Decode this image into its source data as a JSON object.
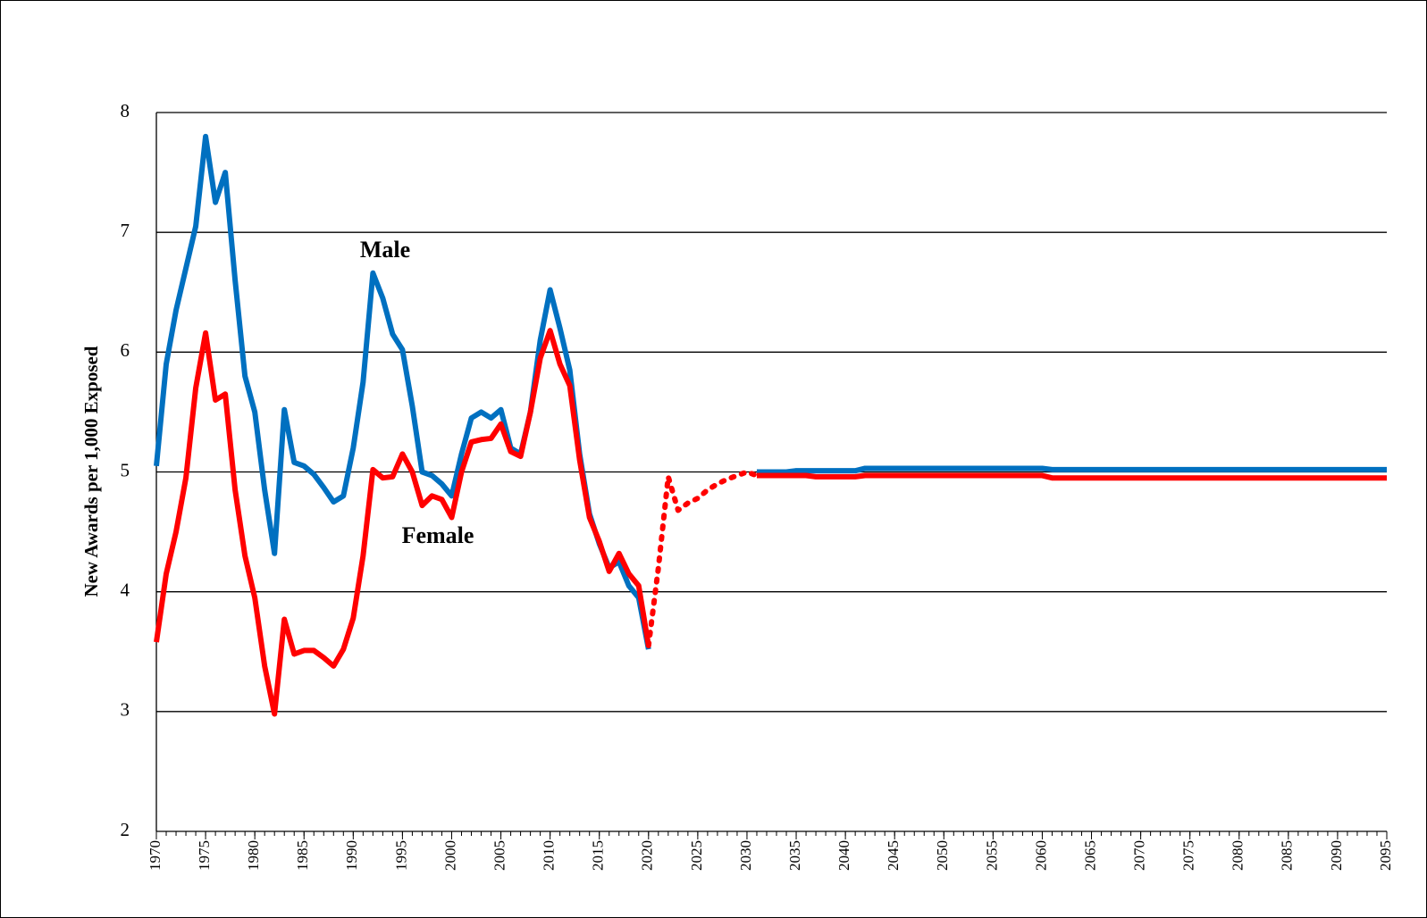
{
  "chart_data": {
    "type": "line",
    "y_label": "New Awards per 1,000 Exposed",
    "annotations": [
      {
        "text": "Male"
      },
      {
        "text": "Female"
      }
    ],
    "x": [
      1970,
      1971,
      1972,
      1973,
      1974,
      1975,
      1976,
      1977,
      1978,
      1979,
      1980,
      1981,
      1982,
      1983,
      1984,
      1985,
      1986,
      1987,
      1988,
      1989,
      1990,
      1991,
      1992,
      1993,
      1994,
      1995,
      1996,
      1997,
      1998,
      1999,
      2000,
      2001,
      2002,
      2003,
      2004,
      2005,
      2006,
      2007,
      2008,
      2009,
      2010,
      2011,
      2012,
      2013,
      2014,
      2015,
      2016,
      2017,
      2018,
      2019,
      2020,
      2021,
      2022,
      2023,
      2024,
      2025,
      2026,
      2027,
      2028,
      2029,
      2030,
      2031,
      2032,
      2033,
      2034,
      2035,
      2036,
      2037,
      2038,
      2039,
      2040,
      2041,
      2042,
      2043,
      2044,
      2045,
      2046,
      2047,
      2048,
      2049,
      2050,
      2051,
      2052,
      2053,
      2054,
      2055,
      2056,
      2057,
      2058,
      2059,
      2060,
      2061,
      2062,
      2063,
      2064,
      2065,
      2066,
      2067,
      2068,
      2069,
      2070,
      2071,
      2072,
      2073,
      2074,
      2075,
      2076,
      2077,
      2078,
      2079,
      2080,
      2081,
      2082,
      2083,
      2084,
      2085,
      2086,
      2087,
      2088,
      2089,
      2090,
      2091,
      2092,
      2093,
      2094,
      2095
    ],
    "series": [
      {
        "name": "Male",
        "color": "#0070c0",
        "values": [
          5.05,
          5.9,
          6.35,
          6.7,
          7.05,
          7.8,
          7.25,
          7.5,
          6.6,
          5.8,
          5.5,
          4.85,
          4.32,
          5.52,
          5.08,
          5.05,
          4.98,
          4.87,
          4.75,
          4.8,
          5.2,
          5.75,
          6.66,
          6.45,
          6.15,
          6.02,
          5.55,
          5.0,
          4.97,
          4.9,
          4.8,
          5.15,
          5.45,
          5.5,
          5.45,
          5.52,
          5.2,
          5.15,
          5.5,
          6.1,
          6.52,
          6.2,
          5.85,
          5.15,
          4.65,
          4.4,
          4.2,
          4.25,
          4.05,
          3.95,
          3.52,
          null,
          null,
          null,
          null,
          null,
          null,
          null,
          null,
          null,
          null,
          5.0,
          5.0,
          5.0,
          5.0,
          5.01,
          5.01,
          5.01,
          5.01,
          5.01,
          5.01,
          5.01,
          5.03,
          5.03,
          5.03,
          5.03,
          5.03,
          5.03,
          5.03,
          5.03,
          5.03,
          5.03,
          5.03,
          5.03,
          5.03,
          5.03,
          5.03,
          5.03,
          5.03,
          5.03,
          5.03,
          5.02,
          5.02,
          5.02,
          5.02,
          5.02,
          5.02,
          5.02,
          5.02,
          5.02,
          5.02,
          5.02,
          5.02,
          5.02,
          5.02,
          5.02,
          5.02,
          5.02,
          5.02,
          5.02,
          5.02,
          5.02,
          5.02,
          5.02,
          5.02,
          5.02,
          5.02,
          5.02,
          5.02,
          5.02,
          5.02,
          5.02,
          5.02,
          5.02,
          5.02,
          5.02
        ]
      },
      {
        "name": "Female",
        "color": "#ff0000",
        "values": [
          3.58,
          4.15,
          4.5,
          4.95,
          5.7,
          6.16,
          5.6,
          5.65,
          4.85,
          4.3,
          3.95,
          3.38,
          2.98,
          3.77,
          3.48,
          3.51,
          3.51,
          3.45,
          3.38,
          3.52,
          3.78,
          4.3,
          5.02,
          4.95,
          4.96,
          5.15,
          5.0,
          4.72,
          4.8,
          4.77,
          4.62,
          5.0,
          5.25,
          5.27,
          5.28,
          5.4,
          5.17,
          5.13,
          5.5,
          5.95,
          6.18,
          5.9,
          5.72,
          5.1,
          4.62,
          4.42,
          4.17,
          4.32,
          4.15,
          4.05,
          3.55,
          4.2,
          4.96,
          4.68,
          4.74,
          4.78,
          4.85,
          4.9,
          4.94,
          4.97,
          5.0,
          4.97,
          4.97,
          4.97,
          4.97,
          4.97,
          4.97,
          4.96,
          4.96,
          4.96,
          4.96,
          4.96,
          4.97,
          4.97,
          4.97,
          4.97,
          4.97,
          4.97,
          4.97,
          4.97,
          4.97,
          4.97,
          4.97,
          4.97,
          4.97,
          4.97,
          4.97,
          4.97,
          4.97,
          4.97,
          4.97,
          4.95,
          4.95,
          4.95,
          4.95,
          4.95,
          4.95,
          4.95,
          4.95,
          4.95,
          4.95,
          4.95,
          4.95,
          4.95,
          4.95,
          4.95,
          4.95,
          4.95,
          4.95,
          4.95,
          4.95,
          4.95,
          4.95,
          4.95,
          4.95,
          4.95,
          4.95,
          4.95,
          4.95,
          4.95,
          4.95,
          4.95,
          4.95,
          4.95,
          4.95,
          4.95
        ]
      }
    ],
    "dotted_from": 2020,
    "dotted_to": 2031,
    "xlim": [
      1970,
      2095
    ],
    "xticks": [
      1970,
      1975,
      1980,
      1985,
      1990,
      1995,
      2000,
      2005,
      2010,
      2015,
      2020,
      2025,
      2030,
      2035,
      2040,
      2045,
      2050,
      2055,
      2060,
      2065,
      2070,
      2075,
      2080,
      2085,
      2090,
      2095
    ],
    "ylim": [
      2,
      8
    ],
    "yticks": [
      2,
      3,
      4,
      5,
      6,
      7,
      8
    ],
    "grid": true
  }
}
